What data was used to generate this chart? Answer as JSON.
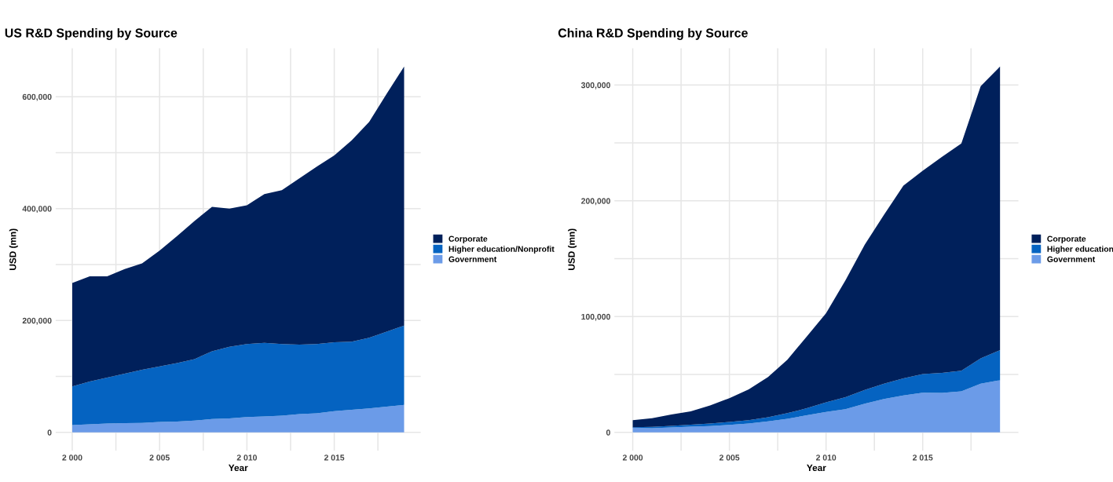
{
  "chart_data": [
    {
      "type": "area",
      "stacked": true,
      "title": "US R&D Spending by Source",
      "xlabel": "Year",
      "ylabel": "USD (mn)",
      "legend": "right",
      "grid": true,
      "x": [
        2000,
        2001,
        2002,
        2003,
        2004,
        2005,
        2006,
        2007,
        2008,
        2009,
        2010,
        2011,
        2012,
        2013,
        2014,
        2015,
        2016,
        2017,
        2018,
        2019
      ],
      "xlim": [
        1999.05,
        2019.95
      ],
      "ylim": [
        -32700,
        686700
      ],
      "xticks": [
        {
          "value": 2000,
          "label": "2 000"
        },
        {
          "value": 2002.5,
          "label": null
        },
        {
          "value": 2005,
          "label": "2 005"
        },
        {
          "value": 2007.5,
          "label": null
        },
        {
          "value": 2010,
          "label": "2 010"
        },
        {
          "value": 2012.5,
          "label": null
        },
        {
          "value": 2015,
          "label": "2 015"
        },
        {
          "value": 2017.5,
          "label": null
        }
      ],
      "yticks": [
        0,
        {
          "value": 100000,
          "label": null
        },
        {
          "value": 200000,
          "label": "200,000"
        },
        {
          "value": 300000,
          "label": null
        },
        {
          "value": 400000,
          "label": "400,000"
        },
        {
          "value": 500000,
          "label": null
        },
        {
          "value": 600000,
          "label": "600,000"
        }
      ],
      "series": [
        {
          "name": "Government",
          "color": "#6b9be8",
          "values": [
            13000,
            14500,
            16000,
            16500,
            17000,
            18500,
            19500,
            21000,
            24000,
            25000,
            27500,
            28500,
            30000,
            32500,
            34000,
            38000,
            40500,
            43000,
            46000,
            49000
          ]
        },
        {
          "name": "Higher education/Nonprofit",
          "color": "#0563c1",
          "values": [
            69000,
            76500,
            82000,
            88500,
            95000,
            99500,
            104500,
            110000,
            121000,
            128000,
            130500,
            131500,
            128000,
            124500,
            124000,
            123000,
            121500,
            126000,
            134000,
            142000
          ]
        },
        {
          "name": "Corporate",
          "color": "#00205b",
          "values": [
            185000,
            188000,
            181000,
            187000,
            190000,
            207000,
            227000,
            247000,
            258000,
            247000,
            248000,
            266000,
            275000,
            297000,
            317000,
            334000,
            360000,
            386000,
            425000,
            463000
          ]
        }
      ]
    },
    {
      "type": "area",
      "stacked": true,
      "title": "China R&D Spending by Source",
      "xlabel": "Year",
      "ylabel": "USD (mn)",
      "legend": "right",
      "grid": true,
      "x": [
        2000,
        2001,
        2002,
        2003,
        2004,
        2005,
        2006,
        2007,
        2008,
        2009,
        2010,
        2011,
        2012,
        2013,
        2014,
        2015,
        2016,
        2017,
        2018,
        2019
      ],
      "xlim": [
        1999.05,
        2019.95
      ],
      "ylim": [
        -15800,
        331800
      ],
      "xticks": [
        {
          "value": 2000,
          "label": "2 000"
        },
        {
          "value": 2002.5,
          "label": null
        },
        {
          "value": 2005,
          "label": "2 005"
        },
        {
          "value": 2007.5,
          "label": null
        },
        {
          "value": 2010,
          "label": "2 010"
        },
        {
          "value": 2012.5,
          "label": null
        },
        {
          "value": 2015,
          "label": "2 015"
        },
        {
          "value": 2017.5,
          "label": null
        }
      ],
      "yticks": [
        0,
        {
          "value": 50000,
          "label": null
        },
        {
          "value": 100000,
          "label": "100,000"
        },
        {
          "value": 150000,
          "label": null
        },
        {
          "value": 200000,
          "label": "200,000"
        },
        {
          "value": 250000,
          "label": null
        },
        {
          "value": 300000,
          "label": "300,000"
        }
      ],
      "series": [
        {
          "name": "Government",
          "color": "#6b9be8",
          "values": [
            4000,
            3500,
            4300,
            5000,
            5400,
            6400,
            7600,
            9500,
            11800,
            14700,
            17700,
            20100,
            24800,
            28900,
            31900,
            34300,
            34100,
            35500,
            42100,
            45000
          ]
        },
        {
          "name": "Higher education",
          "color": "#0563c1",
          "values": [
            500,
            1200,
            1400,
            1600,
            2200,
            2600,
            3000,
            3500,
            4800,
            6100,
            8300,
            10200,
            11900,
            13200,
            14700,
            16100,
            17200,
            17700,
            21800,
            26000
          ]
        },
        {
          "name": "Corporate",
          "color": "#00205b",
          "values": [
            6100,
            7600,
            9700,
            11600,
            15600,
            20600,
            26500,
            34800,
            46100,
            62000,
            76900,
            101000,
            125300,
            145900,
            166400,
            175600,
            186700,
            196400,
            235100,
            245000
          ]
        }
      ]
    }
  ]
}
